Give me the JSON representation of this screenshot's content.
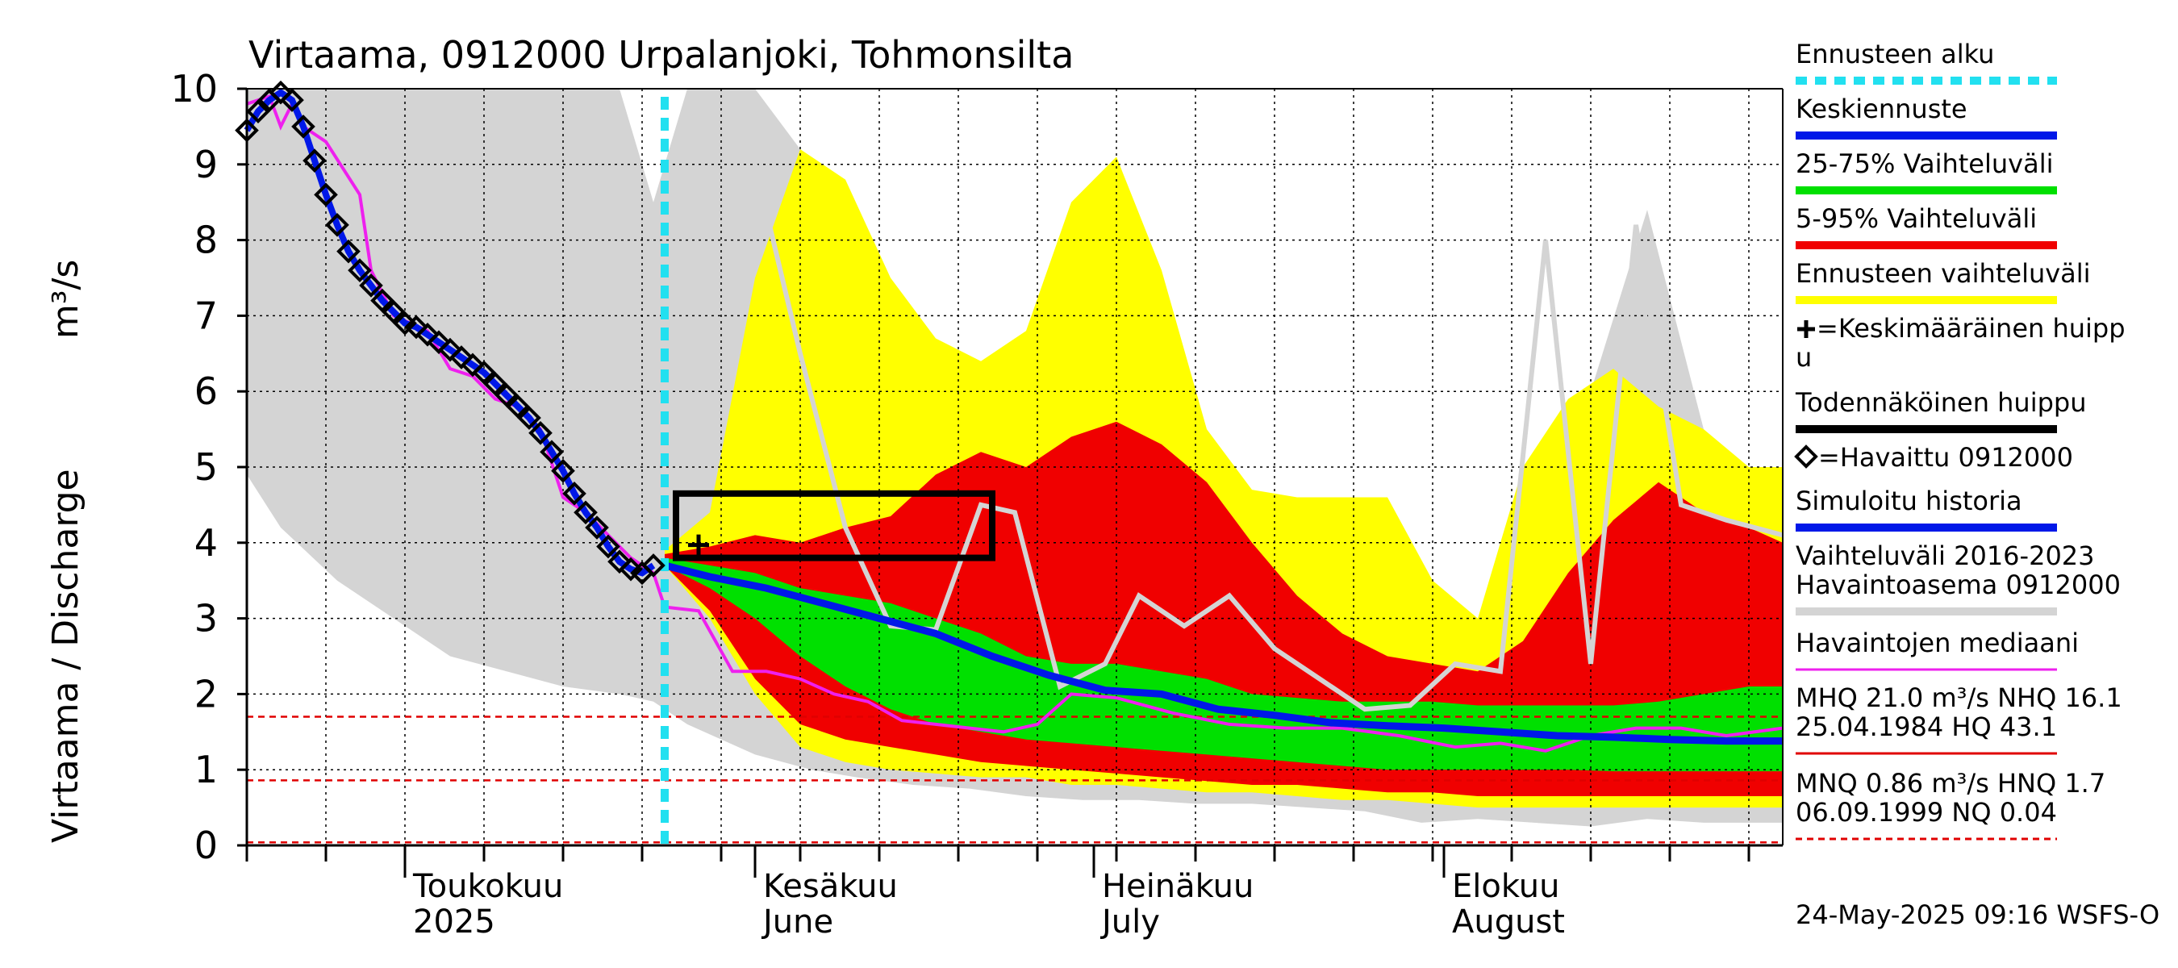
{
  "chart_data": {
    "type": "area",
    "title": "Virtaama, 0912000 Urpalanjoki, Tohmonsilta",
    "ylabel": "Virtaama / Discharge",
    "yunit": "m³/s",
    "ylim": [
      0,
      10
    ],
    "yticks": [
      0,
      1,
      2,
      3,
      4,
      5,
      6,
      7,
      8,
      9,
      10
    ],
    "xlim": [
      "2025-04-17",
      "2025-08-31"
    ],
    "grid": true,
    "month_labels": [
      {
        "fi": "Toukokuu",
        "en": "2025",
        "date": "2025-05-01"
      },
      {
        "fi": "Kesäkuu",
        "en": "June",
        "date": "2025-06-01"
      },
      {
        "fi": "Heinäkuu",
        "en": "July",
        "date": "2025-07-01"
      },
      {
        "fi": "Elokuu",
        "en": "August",
        "date": "2025-08-01"
      }
    ],
    "forecast_start": "2025-05-24",
    "probable_peak_box": {
      "x_from": "2025-05-25",
      "x_to": "2025-06-22",
      "y_from": 3.8,
      "y_to": 4.65
    },
    "mean_peak": {
      "date": "2025-05-27",
      "value": 3.97
    },
    "reference_lines": [
      {
        "name": "HQ",
        "value": 43.1,
        "color": "#e00000",
        "dashed": false
      },
      {
        "name": "MHQ",
        "value": 21.0,
        "color": "#e00000",
        "dashed": true
      },
      {
        "name": "NHQ",
        "value": 16.1,
        "color": "#e00000",
        "dashed": true
      },
      {
        "name": "MNQ",
        "value": 0.86,
        "color": "#e00000",
        "dashed": true
      },
      {
        "name": "HNQ",
        "value": 1.7,
        "color": "#e00000",
        "dashed": true
      },
      {
        "name": "NQ",
        "value": 0.04,
        "color": "#e00000",
        "dashed": true
      }
    ],
    "colors": {
      "forecast_start": "#22e0f0",
      "median_forecast": "#0018e8",
      "band_25_75": "#00e000",
      "band_5_95": "#f00000",
      "band_forecast": "#ffff00",
      "simulated": "#0018e8",
      "history_band": "#d4d4d4",
      "history_line": "#d4d4d4",
      "obs_median": "#ee20ee",
      "reference": "#e00000"
    },
    "series": [
      {
        "name": "Havaittu 0912000",
        "x": [
          "2025-04-17",
          "2025-04-18",
          "2025-04-19",
          "2025-04-20",
          "2025-04-21",
          "2025-04-22",
          "2025-04-23",
          "2025-04-24",
          "2025-04-25",
          "2025-04-26",
          "2025-04-27",
          "2025-04-28",
          "2025-04-29",
          "2025-04-30",
          "2025-05-01",
          "2025-05-02",
          "2025-05-03",
          "2025-05-04",
          "2025-05-05",
          "2025-05-06",
          "2025-05-07",
          "2025-05-08",
          "2025-05-09",
          "2025-05-10",
          "2025-05-11",
          "2025-05-12",
          "2025-05-13",
          "2025-05-14",
          "2025-05-15",
          "2025-05-16",
          "2025-05-17",
          "2025-05-18",
          "2025-05-19",
          "2025-05-20",
          "2025-05-21",
          "2025-05-22",
          "2025-05-23"
        ],
        "y": [
          9.45,
          9.7,
          9.85,
          9.95,
          9.85,
          9.5,
          9.05,
          8.6,
          8.2,
          7.85,
          7.6,
          7.4,
          7.2,
          7.05,
          6.9,
          6.85,
          6.75,
          6.65,
          6.55,
          6.45,
          6.35,
          6.25,
          6.1,
          5.95,
          5.8,
          5.65,
          5.45,
          5.2,
          4.95,
          4.65,
          4.4,
          4.2,
          3.95,
          3.75,
          3.65,
          3.6,
          3.7
        ]
      },
      {
        "name": "Keskiennuste",
        "x": [
          "2025-05-24",
          "2025-05-28",
          "2025-06-02",
          "2025-06-07",
          "2025-06-12",
          "2025-06-17",
          "2025-06-22",
          "2025-06-27",
          "2025-07-02",
          "2025-07-07",
          "2025-07-12",
          "2025-07-17",
          "2025-07-22",
          "2025-07-27",
          "2025-08-01",
          "2025-08-06",
          "2025-08-11",
          "2025-08-16",
          "2025-08-21",
          "2025-08-26",
          "2025-08-31"
        ],
        "y": [
          3.7,
          3.55,
          3.4,
          3.2,
          3.0,
          2.8,
          2.5,
          2.25,
          2.05,
          2.0,
          1.8,
          1.72,
          1.62,
          1.58,
          1.55,
          1.5,
          1.45,
          1.43,
          1.4,
          1.38,
          1.38
        ]
      },
      {
        "name": "Havaintojen mediaani",
        "x": [
          "2025-04-17",
          "2025-04-19",
          "2025-04-20",
          "2025-04-21",
          "2025-04-22",
          "2025-04-24",
          "2025-04-27",
          "2025-04-28",
          "2025-04-30",
          "2025-05-03",
          "2025-05-05",
          "2025-05-07",
          "2025-05-09",
          "2025-05-11",
          "2025-05-13",
          "2025-05-15",
          "2025-05-17",
          "2025-05-19",
          "2025-05-21",
          "2025-05-23",
          "2025-05-24",
          "2025-05-27",
          "2025-05-30",
          "2025-06-02",
          "2025-06-05",
          "2025-06-08",
          "2025-06-11",
          "2025-06-14",
          "2025-06-17",
          "2025-06-20",
          "2025-06-23",
          "2025-06-26",
          "2025-06-29",
          "2025-07-03",
          "2025-07-08",
          "2025-07-13",
          "2025-07-18",
          "2025-07-23",
          "2025-07-28",
          "2025-08-02",
          "2025-08-06",
          "2025-08-10",
          "2025-08-14",
          "2025-08-18",
          "2025-08-22",
          "2025-08-26",
          "2025-08-31"
        ],
        "y": [
          9.8,
          9.9,
          9.5,
          9.8,
          9.5,
          9.3,
          8.6,
          7.6,
          7.0,
          6.8,
          6.3,
          6.2,
          5.9,
          5.8,
          5.5,
          4.6,
          4.4,
          4.1,
          3.8,
          3.6,
          3.15,
          3.1,
          2.3,
          2.3,
          2.2,
          2.0,
          1.9,
          1.65,
          1.6,
          1.55,
          1.5,
          1.6,
          2.0,
          1.95,
          1.75,
          1.6,
          1.55,
          1.55,
          1.45,
          1.3,
          1.35,
          1.25,
          1.45,
          1.55,
          1.55,
          1.45,
          1.55
        ]
      },
      {
        "name": "Vaihteluväli 2016-2023 Havaintoasema 0912000 (median line)",
        "x": [
          "2025-06-01",
          "2025-06-05",
          "2025-06-09",
          "2025-06-13",
          "2025-06-17",
          "2025-06-21",
          "2025-06-24",
          "2025-06-28",
          "2025-07-02",
          "2025-07-05",
          "2025-07-09",
          "2025-07-13",
          "2025-07-17",
          "2025-07-21",
          "2025-07-25",
          "2025-07-29",
          "2025-08-02",
          "2025-08-06",
          "2025-08-10",
          "2025-08-14",
          "2025-08-18",
          "2025-08-22",
          "2025-08-26",
          "2025-08-31"
        ],
        "y": [
          9.0,
          6.5,
          4.2,
          2.9,
          2.85,
          4.5,
          4.4,
          2.1,
          2.4,
          3.3,
          2.9,
          3.3,
          2.6,
          2.2,
          1.8,
          1.85,
          2.4,
          2.3,
          8.0,
          2.4,
          8.2,
          4.5,
          4.3,
          4.1
        ]
      }
    ],
    "bands": [
      {
        "name": "Ennusteen vaihteluväli",
        "x": [
          "2025-05-24",
          "2025-05-28",
          "2025-06-01",
          "2025-06-05",
          "2025-06-09",
          "2025-06-13",
          "2025-06-17",
          "2025-06-21",
          "2025-06-25",
          "2025-06-29",
          "2025-07-03",
          "2025-07-07",
          "2025-07-11",
          "2025-07-15",
          "2025-07-19",
          "2025-07-23",
          "2025-07-27",
          "2025-07-31",
          "2025-08-04",
          "2025-08-08",
          "2025-08-12",
          "2025-08-16",
          "2025-08-20",
          "2025-08-24",
          "2025-08-28",
          "2025-08-31"
        ],
        "low": [
          3.7,
          3.0,
          2.0,
          1.3,
          1.1,
          1.0,
          0.95,
          0.9,
          0.9,
          0.8,
          0.8,
          0.75,
          0.7,
          0.7,
          0.65,
          0.6,
          0.6,
          0.55,
          0.5,
          0.5,
          0.5,
          0.5,
          0.5,
          0.5,
          0.5,
          0.5
        ],
        "high": [
          3.9,
          4.4,
          7.5,
          9.2,
          8.8,
          7.5,
          6.7,
          6.4,
          6.8,
          8.5,
          9.1,
          7.6,
          5.5,
          4.7,
          4.6,
          4.6,
          4.6,
          3.5,
          3.0,
          5.0,
          5.9,
          6.3,
          5.8,
          5.5,
          5.0,
          5.0
        ]
      },
      {
        "name": "5-95% Vaihteluväli",
        "x": [
          "2025-05-24",
          "2025-05-28",
          "2025-06-01",
          "2025-06-05",
          "2025-06-09",
          "2025-06-13",
          "2025-06-17",
          "2025-06-21",
          "2025-06-25",
          "2025-06-29",
          "2025-07-03",
          "2025-07-07",
          "2025-07-11",
          "2025-07-15",
          "2025-07-19",
          "2025-07-23",
          "2025-07-27",
          "2025-07-31",
          "2025-08-04",
          "2025-08-08",
          "2025-08-12",
          "2025-08-16",
          "2025-08-20",
          "2025-08-24",
          "2025-08-28",
          "2025-08-31"
        ],
        "low": [
          3.7,
          3.1,
          2.2,
          1.6,
          1.4,
          1.3,
          1.2,
          1.1,
          1.05,
          1.0,
          0.95,
          0.9,
          0.85,
          0.8,
          0.8,
          0.75,
          0.7,
          0.7,
          0.65,
          0.65,
          0.65,
          0.65,
          0.65,
          0.65,
          0.65,
          0.65
        ],
        "high": [
          3.85,
          3.95,
          4.1,
          4.0,
          4.2,
          4.35,
          4.9,
          5.2,
          5.0,
          5.4,
          5.6,
          5.3,
          4.8,
          4.0,
          3.3,
          2.8,
          2.5,
          2.4,
          2.3,
          2.7,
          3.6,
          4.3,
          4.8,
          4.4,
          4.2,
          4.0
        ]
      },
      {
        "name": "25-75% Vaihteluväli",
        "x": [
          "2025-05-24",
          "2025-05-28",
          "2025-06-01",
          "2025-06-05",
          "2025-06-09",
          "2025-06-13",
          "2025-06-17",
          "2025-06-21",
          "2025-06-25",
          "2025-06-29",
          "2025-07-03",
          "2025-07-07",
          "2025-07-11",
          "2025-07-15",
          "2025-07-19",
          "2025-07-23",
          "2025-07-27",
          "2025-07-31",
          "2025-08-04",
          "2025-08-08",
          "2025-08-12",
          "2025-08-16",
          "2025-08-20",
          "2025-08-24",
          "2025-08-28",
          "2025-08-31"
        ],
        "low": [
          3.7,
          3.4,
          3.0,
          2.5,
          2.1,
          1.8,
          1.6,
          1.5,
          1.4,
          1.35,
          1.3,
          1.25,
          1.2,
          1.15,
          1.1,
          1.05,
          1.0,
          1.0,
          1.0,
          1.0,
          1.0,
          0.98,
          0.98,
          0.98,
          0.98,
          0.98
        ],
        "high": [
          3.8,
          3.7,
          3.6,
          3.4,
          3.3,
          3.2,
          3.0,
          2.8,
          2.5,
          2.4,
          2.4,
          2.3,
          2.2,
          2.0,
          1.95,
          1.9,
          1.9,
          1.9,
          1.85,
          1.85,
          1.85,
          1.85,
          1.9,
          2.0,
          2.1,
          2.1
        ]
      },
      {
        "name": "Vaihteluväli 2016-2023 Havaintoasema 0912000",
        "x": [
          "2025-04-17",
          "2025-04-20",
          "2025-04-25",
          "2025-04-30",
          "2025-05-05",
          "2025-05-10",
          "2025-05-15",
          "2025-05-20",
          "2025-05-23",
          "2025-05-26",
          "2025-06-01",
          "2025-06-06",
          "2025-06-10",
          "2025-06-15",
          "2025-06-20",
          "2025-06-25",
          "2025-06-30",
          "2025-07-05",
          "2025-07-10",
          "2025-07-15",
          "2025-07-20",
          "2025-07-25",
          "2025-07-30",
          "2025-08-04",
          "2025-08-09",
          "2025-08-14",
          "2025-08-19",
          "2025-08-24",
          "2025-08-31"
        ],
        "low": [
          4.9,
          4.2,
          3.5,
          3.0,
          2.5,
          2.3,
          2.1,
          2.0,
          1.9,
          1.6,
          1.2,
          1.0,
          0.9,
          0.8,
          0.75,
          0.65,
          0.6,
          0.6,
          0.55,
          0.55,
          0.5,
          0.45,
          0.3,
          0.35,
          0.3,
          0.25,
          0.35,
          0.3,
          0.3
        ],
        "high": [
          10,
          10,
          10,
          10,
          10,
          10,
          10,
          10,
          8.5,
          10,
          10,
          9.0,
          4.2,
          2.9,
          2.8,
          4.5,
          4.4,
          2.3,
          2.5,
          3.3,
          3.0,
          2.7,
          2.1,
          2.0,
          2.2,
          6.0,
          8.4,
          5.5,
          4.2
        ]
      }
    ],
    "legend": [
      {
        "label": "Ennusteen alku",
        "kind": "dashed",
        "color": "#22e0f0"
      },
      {
        "label": "Keskiennuste",
        "kind": "line",
        "color": "#0018e8"
      },
      {
        "label": "25-75% Vaihteluväli",
        "kind": "line",
        "color": "#00e000"
      },
      {
        "label": "5-95% Vaihteluväli",
        "kind": "line",
        "color": "#f00000"
      },
      {
        "label": "Ennusteen vaihteluväli",
        "kind": "line",
        "color": "#ffff00"
      },
      {
        "label": "=Keskimääräinen huipp",
        "label2": "u",
        "kind": "plus",
        "color": "#000000"
      },
      {
        "label": "Todennäköinen huippu",
        "kind": "line",
        "color": "#000000"
      },
      {
        "label": "=Havaittu 0912000",
        "kind": "diamond",
        "color": "#000000"
      },
      {
        "label": "Simuloitu historia",
        "kind": "line",
        "color": "#0018e8"
      },
      {
        "label": "Vaihteluväli 2016-2023",
        "label2": " Havaintoasema 0912000",
        "kind": "line",
        "color": "#d4d4d4"
      },
      {
        "label": "Havaintojen mediaani",
        "kind": "thin",
        "color": "#ee20ee"
      },
      {
        "label": "MHQ 21.0 m³/s NHQ 16.1",
        "label2": "25.04.1984 HQ 43.1",
        "kind": "thin",
        "color": "#e00000"
      },
      {
        "label": "MNQ 0.86 m³/s HNQ  1.7",
        "label2": "06.09.1999 NQ 0.04",
        "kind": "dashedthin",
        "color": "#e00000"
      }
    ],
    "footer": "24-May-2025 09:16 WSFS-O"
  }
}
